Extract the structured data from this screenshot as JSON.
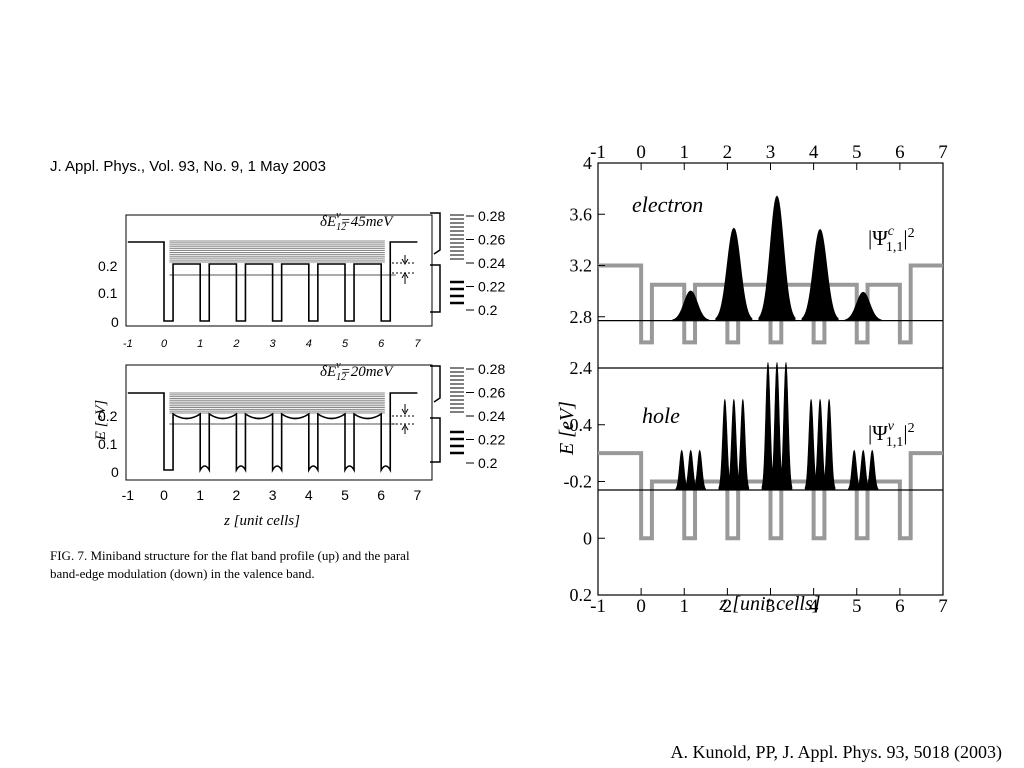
{
  "journal_header": "J. Appl. Phys., Vol. 93, No. 9, 1 May 2003",
  "caption": {
    "line1": "FIG. 7. Miniband structure for the flat band profile (up) and the paral",
    "line2": "band-edge modulation (down) in the valence band."
  },
  "citation": "A. Kunold, PP, J. Appl. Phys. 93, 5018 (2003)",
  "left_figure": {
    "top_panel": {
      "label_delta": "δE",
      "label_sub": "12",
      "label_sup": "v",
      "label_value": "=45meV",
      "yticks": [
        "0.2",
        "0.1",
        "0"
      ],
      "scale_ticks": [
        "0.28",
        "0.26",
        "0.24",
        "0.22",
        "0.2"
      ]
    },
    "bottom_panel": {
      "label_delta": "δE",
      "label_sub": "12",
      "label_sup": "v",
      "label_value": "=20meV",
      "yticks": [
        "0.2",
        "0.1",
        "0"
      ],
      "scale_ticks": [
        "0.28",
        "0.26",
        "0.24",
        "0.22",
        "0.2"
      ]
    },
    "ylabel": "E [eV]",
    "xticks": [
      "-1",
      "0",
      "1",
      "2",
      "3",
      "4",
      "5",
      "6",
      "7"
    ],
    "xlabel": "z [unit cells]"
  },
  "right_figure": {
    "top_xticks": [
      "-1",
      "0",
      "1",
      "2",
      "3",
      "4",
      "5",
      "6",
      "7"
    ],
    "upper_panel": {
      "title": "electron",
      "psi_sup": "c",
      "psi_sub": "1,1",
      "psi_exp": "2",
      "yticks": [
        "4",
        "3.6",
        "3.2",
        "2.8",
        "2.4"
      ]
    },
    "lower_panel": {
      "title": "hole",
      "psi_sup": "v",
      "psi_sub": "1,1",
      "psi_exp": "2",
      "yticks": [
        "-0.4",
        "-0.2",
        "0",
        "0.2"
      ]
    },
    "ylabel": "E [eV]",
    "xticks": [
      "-1",
      "0",
      "1",
      "2",
      "3",
      "4",
      "5",
      "6",
      "7"
    ],
    "xlabel": "z [unit cells]"
  },
  "chart_data": [
    {
      "type": "line",
      "panel": "electron",
      "x": [
        -1,
        0,
        0,
        0.25,
        0.25,
        1,
        1,
        1.25,
        1.25,
        2,
        2,
        2.25,
        2.25,
        3,
        3,
        3.25,
        3.25,
        4,
        4,
        4.25,
        4.25,
        5,
        5,
        5.25,
        5.25,
        6,
        6,
        6.25,
        6.25,
        7
      ],
      "potential": [
        3.2,
        3.2,
        2.6,
        2.6,
        3.05,
        3.05,
        2.6,
        2.6,
        3.05,
        3.05,
        2.6,
        2.6,
        3.05,
        3.05,
        2.6,
        2.6,
        3.05,
        3.05,
        2.6,
        2.6,
        3.05,
        3.05,
        2.6,
        2.6,
        3.05,
        3.05,
        2.6,
        2.6,
        3.2,
        3.2
      ],
      "energy_level": 2.77,
      "peaks": [
        {
          "x": 1.15,
          "h": 3.0
        },
        {
          "x": 2.15,
          "h": 3.49
        },
        {
          "x": 3.15,
          "h": 3.74
        },
        {
          "x": 4.15,
          "h": 3.48
        },
        {
          "x": 5.15,
          "h": 2.99
        }
      ],
      "ylim": [
        2.4,
        4
      ],
      "xlim": [
        -1,
        7
      ]
    },
    {
      "type": "line",
      "panel": "hole",
      "x": [
        -1,
        0,
        0,
        0.25,
        0.25,
        1,
        1,
        1.25,
        1.25,
        2,
        2,
        2.25,
        2.25,
        3,
        3,
        3.25,
        3.25,
        4,
        4,
        4.25,
        4.25,
        5,
        5,
        5.25,
        5.25,
        6,
        6,
        6.25,
        6.25,
        7
      ],
      "potential": [
        -0.3,
        -0.3,
        0,
        0,
        -0.2,
        -0.2,
        0,
        0,
        -0.2,
        -0.2,
        0,
        0,
        -0.2,
        -0.2,
        0,
        0,
        -0.2,
        -0.2,
        0,
        0,
        -0.2,
        -0.2,
        0,
        0,
        -0.2,
        -0.2,
        0,
        0,
        -0.3,
        -0.3
      ],
      "energy_level": -0.17,
      "peak_groups": [
        {
          "x": 1.15,
          "h": -0.31
        },
        {
          "x": 2.15,
          "h": -0.49
        },
        {
          "x": 3.15,
          "h": -0.62
        },
        {
          "x": 4.15,
          "h": -0.49
        },
        {
          "x": 5.15,
          "h": -0.31
        }
      ],
      "ylim": [
        0.2,
        -0.6
      ],
      "xlim": [
        -1,
        7
      ]
    }
  ]
}
